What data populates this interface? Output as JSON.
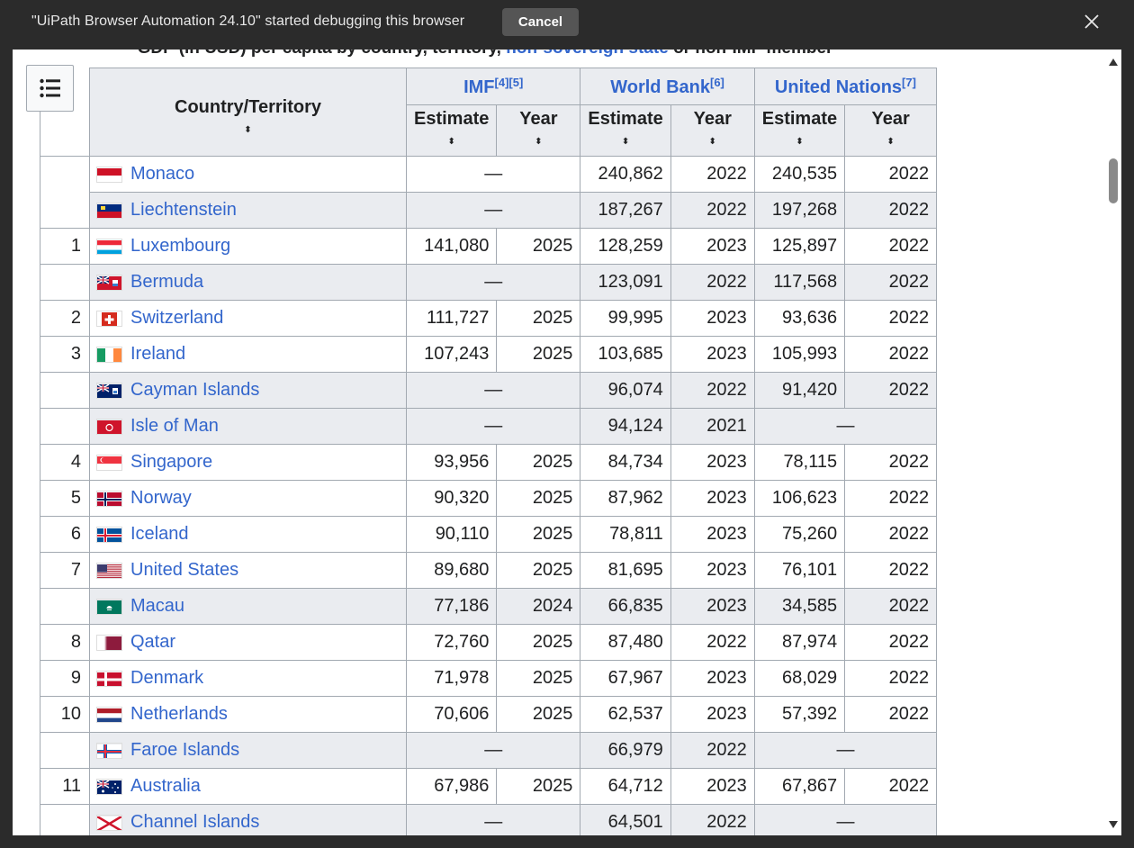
{
  "banner": {
    "message": "\"UiPath Browser Automation 24.10\" started debugging this browser",
    "cancel_label": "Cancel",
    "close_icon": "close-icon"
  },
  "caption": {
    "text_before": "GDP (in USD) per capita by country, territory,",
    "link": "non-sovereign state",
    "text_after": "or non-IMF member"
  },
  "table": {
    "country_header": "Country/Territory",
    "groups": [
      {
        "name": "IMF",
        "refs": "[4][5]"
      },
      {
        "name": "World Bank",
        "refs": "[6]"
      },
      {
        "name": "United Nations",
        "refs": "[7]"
      }
    ],
    "estimate_label": "Estimate",
    "year_label": "Year",
    "sort_glyph": "⬍",
    "dash": "—",
    "rows": [
      {
        "rank": "",
        "country": "Monaco",
        "flag": "monaco",
        "imf_est": "",
        "imf_year": "",
        "wb_est": "240,862",
        "wb_year": "2022",
        "un_est": "240,535",
        "un_year": "2022",
        "alt": false
      },
      {
        "rank": "",
        "country": "Liechtenstein",
        "flag": "liechtenstein",
        "imf_est": "",
        "imf_year": "",
        "wb_est": "187,267",
        "wb_year": "2022",
        "un_est": "197,268",
        "un_year": "2022",
        "alt": true
      },
      {
        "rank": "1",
        "country": "Luxembourg",
        "flag": "luxembourg",
        "imf_est": "141,080",
        "imf_year": "2025",
        "wb_est": "128,259",
        "wb_year": "2023",
        "un_est": "125,897",
        "un_year": "2022",
        "alt": false
      },
      {
        "rank": "",
        "country": "Bermuda",
        "flag": "bermuda",
        "imf_est": "",
        "imf_year": "",
        "wb_est": "123,091",
        "wb_year": "2022",
        "un_est": "117,568",
        "un_year": "2022",
        "alt": true
      },
      {
        "rank": "2",
        "country": "Switzerland",
        "flag": "switzerland",
        "imf_est": "111,727",
        "imf_year": "2025",
        "wb_est": "99,995",
        "wb_year": "2023",
        "un_est": "93,636",
        "un_year": "2022",
        "alt": false
      },
      {
        "rank": "3",
        "country": "Ireland",
        "flag": "ireland",
        "imf_est": "107,243",
        "imf_year": "2025",
        "wb_est": "103,685",
        "wb_year": "2023",
        "un_est": "105,993",
        "un_year": "2022",
        "alt": false
      },
      {
        "rank": "",
        "country": "Cayman Islands",
        "flag": "cayman",
        "imf_est": "",
        "imf_year": "",
        "wb_est": "96,074",
        "wb_year": "2022",
        "un_est": "91,420",
        "un_year": "2022",
        "alt": true
      },
      {
        "rank": "",
        "country": "Isle of Man",
        "flag": "isleofman",
        "imf_est": "",
        "imf_year": "",
        "wb_est": "94,124",
        "wb_year": "2021",
        "un_est": "",
        "un_year": "",
        "alt": true
      },
      {
        "rank": "4",
        "country": "Singapore",
        "flag": "singapore",
        "imf_est": "93,956",
        "imf_year": "2025",
        "wb_est": "84,734",
        "wb_year": "2023",
        "un_est": "78,115",
        "un_year": "2022",
        "alt": false
      },
      {
        "rank": "5",
        "country": "Norway",
        "flag": "norway",
        "imf_est": "90,320",
        "imf_year": "2025",
        "wb_est": "87,962",
        "wb_year": "2023",
        "un_est": "106,623",
        "un_year": "2022",
        "alt": false
      },
      {
        "rank": "6",
        "country": "Iceland",
        "flag": "iceland",
        "imf_est": "90,110",
        "imf_year": "2025",
        "wb_est": "78,811",
        "wb_year": "2023",
        "un_est": "75,260",
        "un_year": "2022",
        "alt": false
      },
      {
        "rank": "7",
        "country": "United States",
        "flag": "usa",
        "imf_est": "89,680",
        "imf_year": "2025",
        "wb_est": "81,695",
        "wb_year": "2023",
        "un_est": "76,101",
        "un_year": "2022",
        "alt": false
      },
      {
        "rank": "",
        "country": "Macau",
        "flag": "macau",
        "imf_est": "77,186",
        "imf_year": "2024",
        "wb_est": "66,835",
        "wb_year": "2023",
        "un_est": "34,585",
        "un_year": "2022",
        "alt": true
      },
      {
        "rank": "8",
        "country": "Qatar",
        "flag": "qatar",
        "imf_est": "72,760",
        "imf_year": "2025",
        "wb_est": "87,480",
        "wb_year": "2022",
        "un_est": "87,974",
        "un_year": "2022",
        "alt": false
      },
      {
        "rank": "9",
        "country": "Denmark",
        "flag": "denmark",
        "imf_est": "71,978",
        "imf_year": "2025",
        "wb_est": "67,967",
        "wb_year": "2023",
        "un_est": "68,029",
        "un_year": "2022",
        "alt": false
      },
      {
        "rank": "10",
        "country": "Netherlands",
        "flag": "netherlands",
        "imf_est": "70,606",
        "imf_year": "2025",
        "wb_est": "62,537",
        "wb_year": "2023",
        "un_est": "57,392",
        "un_year": "2022",
        "alt": false
      },
      {
        "rank": "",
        "country": "Faroe Islands",
        "flag": "faroe",
        "imf_est": "",
        "imf_year": "",
        "wb_est": "66,979",
        "wb_year": "2022",
        "un_est": "",
        "un_year": "",
        "alt": true
      },
      {
        "rank": "11",
        "country": "Australia",
        "flag": "australia",
        "imf_est": "67,986",
        "imf_year": "2025",
        "wb_est": "64,712",
        "wb_year": "2023",
        "un_est": "67,867",
        "un_year": "2022",
        "alt": false
      },
      {
        "rank": "",
        "country": "Channel Islands",
        "flag": "channel",
        "imf_est": "",
        "imf_year": "",
        "wb_est": "64,501",
        "wb_year": "2022",
        "un_est": "",
        "un_year": "",
        "alt": true
      }
    ]
  }
}
